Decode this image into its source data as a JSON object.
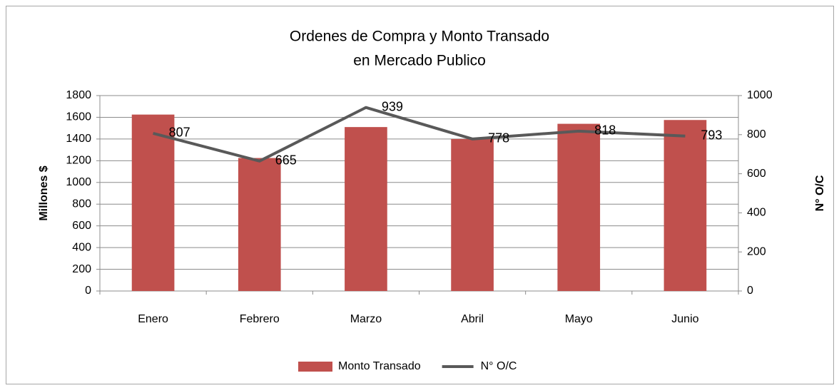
{
  "chart_data": {
    "type": "bar",
    "title": [
      "Ordenes de Compra y Monto Transado",
      "en Mercado Publico"
    ],
    "categories": [
      "Enero",
      "Febrero",
      "Marzo",
      "Abril",
      "Mayo",
      "Junio"
    ],
    "series": [
      {
        "name": "Monto Transado",
        "type": "bar",
        "color": "#c0504d",
        "values": [
          1625,
          1225,
          1510,
          1400,
          1540,
          1575
        ]
      },
      {
        "name": "N° O/C",
        "type": "line",
        "axis": "y2",
        "color": "#595959",
        "values": [
          807,
          665,
          939,
          778,
          818,
          793
        ]
      }
    ],
    "ylabel": "Millones $",
    "y2label": "N° O/C",
    "ylim": [
      0,
      1800
    ],
    "yticks": [
      0,
      200,
      400,
      600,
      800,
      1000,
      1200,
      1400,
      1600,
      1800
    ],
    "y2lim": [
      0,
      1000
    ],
    "y2ticks": [
      0,
      200,
      400,
      600,
      800,
      1000
    ],
    "grid": true,
    "legend": "bottom"
  }
}
